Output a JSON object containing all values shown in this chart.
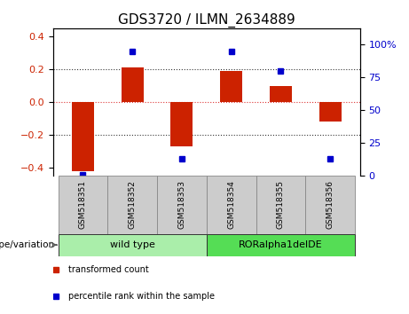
{
  "title": "GDS3720 / ILMN_2634889",
  "samples": [
    "GSM518351",
    "GSM518352",
    "GSM518353",
    "GSM518354",
    "GSM518355",
    "GSM518356"
  ],
  "bar_values": [
    -0.42,
    0.21,
    -0.27,
    0.19,
    0.1,
    -0.12
  ],
  "percentile_values": [
    1,
    95,
    13,
    95,
    80,
    13
  ],
  "ylim_left": [
    -0.45,
    0.45
  ],
  "ylim_right": [
    0,
    112.5
  ],
  "yticks_left": [
    -0.4,
    -0.2,
    0.0,
    0.2,
    0.4
  ],
  "yticks_right": [
    0,
    25,
    50,
    75,
    100
  ],
  "ytick_labels_right": [
    "0",
    "25",
    "50",
    "75",
    "100%"
  ],
  "bar_color": "#cc2200",
  "dot_color": "#0000cc",
  "bar_width": 0.45,
  "hline_values": [
    -0.2,
    0.0,
    0.2
  ],
  "hline_zero_color": "#dd3333",
  "hline_grid_color": "#333333",
  "groups": [
    {
      "label": "wild type",
      "start": 0,
      "end": 2,
      "color": "#aaeeaa"
    },
    {
      "label": "RORalpha1delDE",
      "start": 3,
      "end": 5,
      "color": "#55dd55"
    }
  ],
  "sample_box_color": "#cccccc",
  "sample_box_edge": "#888888",
  "legend_bar_label": "transformed count",
  "legend_dot_label": "percentile rank within the sample",
  "genotype_label": "genotype/variation",
  "title_fontsize": 11,
  "tick_fontsize": 8,
  "sample_fontsize": 6.5,
  "group_fontsize": 8,
  "legend_fontsize": 7,
  "genotype_fontsize": 7.5
}
